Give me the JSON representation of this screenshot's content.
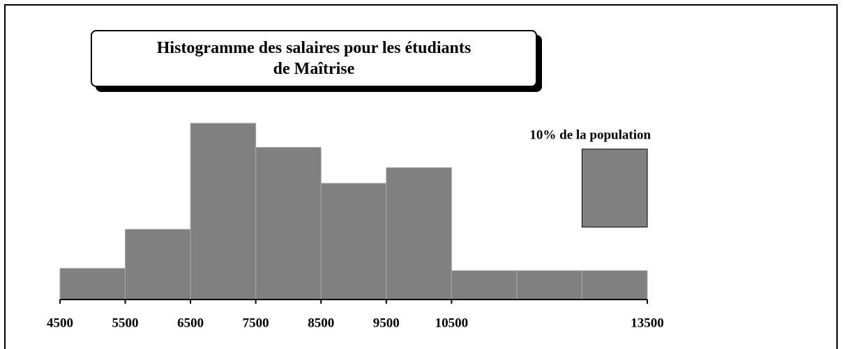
{
  "chart_data": {
    "type": "histogram",
    "title": "Histogramme des salaires pour les étudiants\nde Maîtrise",
    "bins": [
      4500,
      5500,
      6500,
      7500,
      8500,
      9500,
      10500,
      11500,
      12500,
      13500
    ],
    "values": [
      4,
      9,
      22.6,
      19.5,
      14.9,
      16.9,
      3.7,
      3.7,
      3.7
    ],
    "color": "#808080",
    "xlim": [
      4500,
      13500
    ],
    "xticks": [
      4500,
      5500,
      6500,
      7500,
      8500,
      9500,
      10500,
      13500
    ],
    "legend": {
      "label": "10% de la population",
      "value": 10
    }
  }
}
